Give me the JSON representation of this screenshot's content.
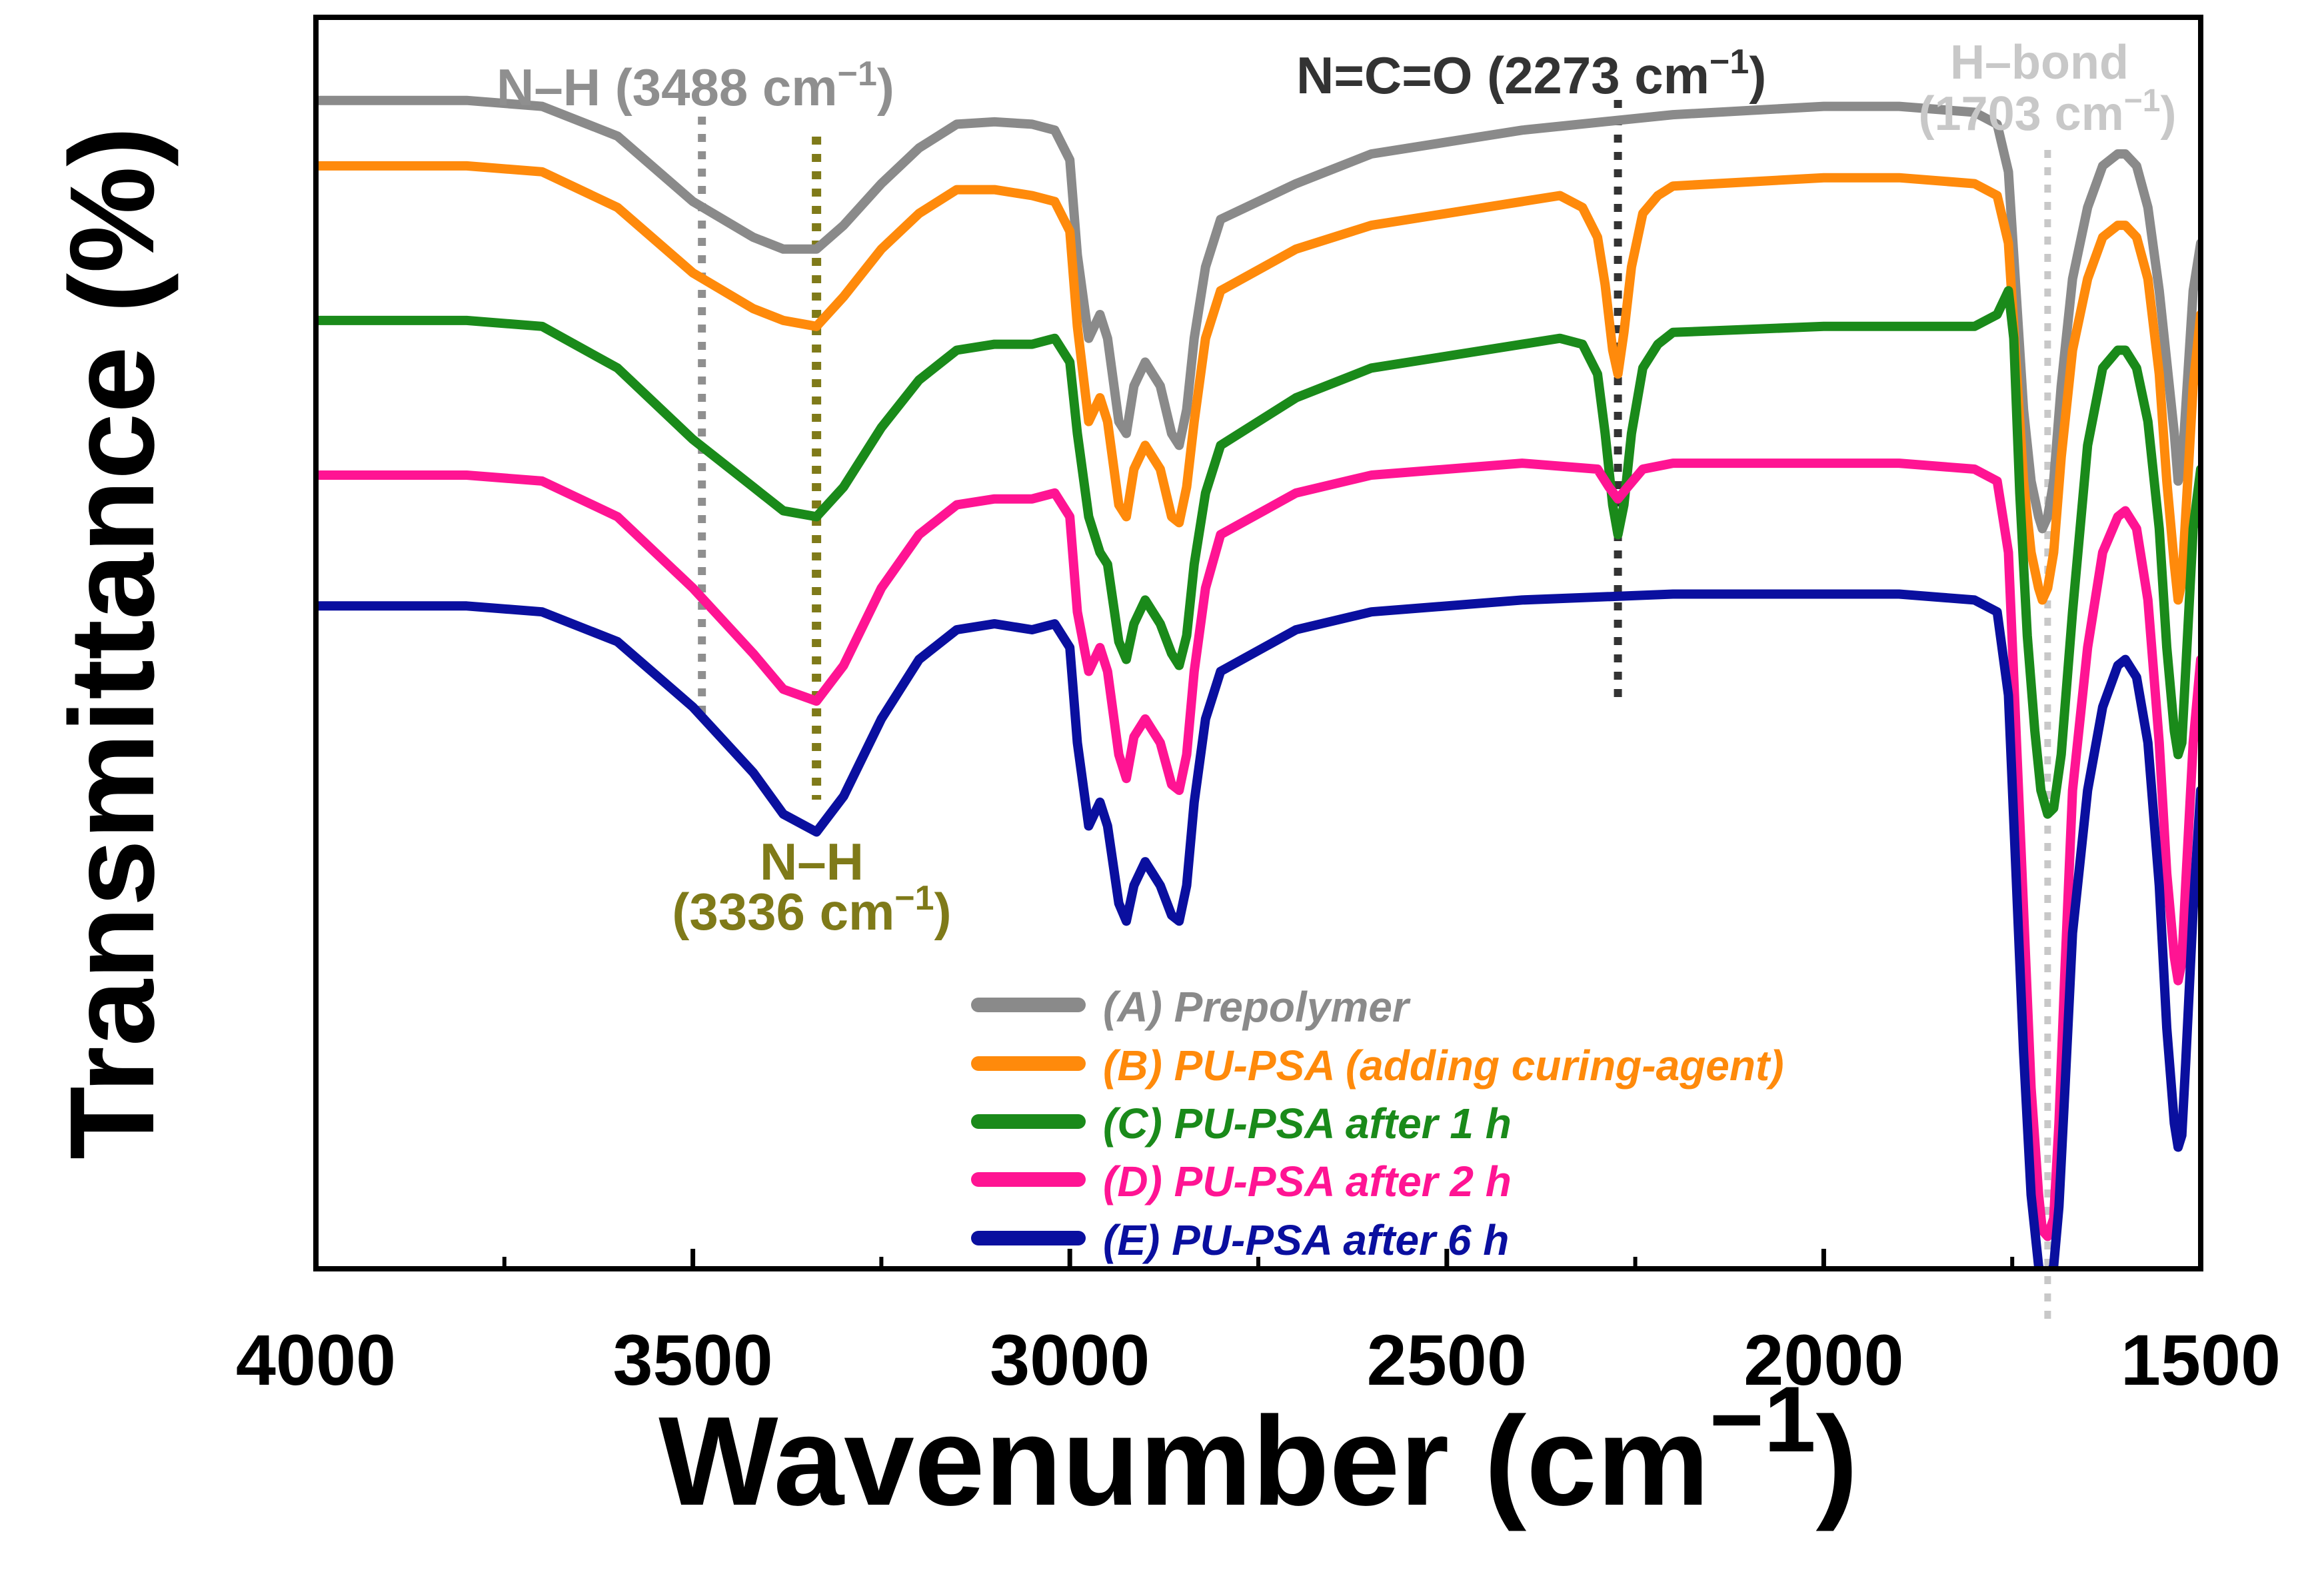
{
  "chart_data": {
    "type": "line",
    "xlabel": "Wavenumber (cm",
    "xlabel_sup": "−1",
    "xlabel_close": ")",
    "ylabel": "Transmittance (%)",
    "xlim": [
      4000,
      1500
    ],
    "x_reversed": true,
    "y_ticks_shown": false,
    "grid": false,
    "legend_position": "bottom-center",
    "x_ticks": [
      4000,
      3500,
      3000,
      2500,
      2000,
      1500
    ],
    "x_tick_labels": [
      "4000",
      "3500",
      "3000",
      "2500",
      "2000",
      "1500"
    ],
    "annotations": [
      {
        "id": "nh-3488",
        "label": "N–H (3488 cm",
        "sup": "−1",
        "close": ")",
        "x": 3488,
        "color": "#8f8f8f"
      },
      {
        "id": "nh-3336",
        "label": "N–H",
        "label2": "(3336 cm",
        "sup": "−1",
        "close": ")",
        "x": 3336,
        "color": "#7f7a19"
      },
      {
        "id": "nco-2273",
        "label": "N=C=O (2273 cm",
        "sup": "−1",
        "close": ")",
        "x": 2273,
        "color": "#333333"
      },
      {
        "id": "hbond-1703",
        "label": "H–bond",
        "label2": "(1703 cm",
        "sup": "−1",
        "close": ")",
        "x": 1703,
        "color": "#c8c8c8"
      }
    ],
    "series": [
      {
        "name": "(A) Prepolymer",
        "color": "#8a8a8a",
        "x": [
          4000,
          3800,
          3700,
          3600,
          3500,
          3420,
          3380,
          3336,
          3300,
          3250,
          3200,
          3150,
          3100,
          3050,
          3020,
          3000,
          2990,
          2975,
          2960,
          2950,
          2935,
          2925,
          2915,
          2900,
          2890,
          2880,
          2865,
          2855,
          2845,
          2835,
          2820,
          2800,
          2700,
          2600,
          2400,
          2200,
          2000,
          1900,
          1800,
          1770,
          1755,
          1745,
          1735,
          1725,
          1715,
          1710,
          1703,
          1695,
          1685,
          1670,
          1650,
          1630,
          1610,
          1600,
          1585,
          1570,
          1555,
          1545,
          1535,
          1530,
          1525,
          1520,
          1510,
          1500
        ],
        "y": [
          98,
          98,
          97.5,
          95,
          89.5,
          86.5,
          85.5,
          85.5,
          87.5,
          91,
          94,
          96,
          96.2,
          96,
          95.5,
          93,
          85,
          78,
          80,
          78,
          71,
          70,
          74,
          76,
          75,
          74,
          70,
          69,
          72,
          78,
          84,
          88,
          91,
          93.5,
          95.5,
          96.8,
          97.5,
          97.5,
          97,
          96,
          92,
          82,
          72,
          66,
          63,
          62,
          63,
          66,
          74,
          83,
          89,
          92.5,
          93.5,
          93.5,
          92.5,
          89,
          82,
          76,
          70,
          66,
          67,
          72,
          82,
          86
        ]
      },
      {
        "name": "(B) PU-PSA (adding curing-agent)",
        "color": "#ff8a0b",
        "x": [
          4000,
          3800,
          3700,
          3600,
          3500,
          3420,
          3380,
          3336,
          3300,
          3250,
          3200,
          3150,
          3100,
          3050,
          3020,
          3000,
          2990,
          2975,
          2960,
          2950,
          2935,
          2925,
          2915,
          2900,
          2890,
          2880,
          2865,
          2855,
          2845,
          2835,
          2820,
          2800,
          2700,
          2600,
          2400,
          2350,
          2320,
          2300,
          2290,
          2280,
          2273,
          2265,
          2255,
          2240,
          2220,
          2200,
          2000,
          1900,
          1800,
          1770,
          1755,
          1745,
          1735,
          1725,
          1715,
          1710,
          1703,
          1695,
          1685,
          1670,
          1650,
          1630,
          1610,
          1600,
          1585,
          1570,
          1555,
          1545,
          1535,
          1530,
          1525,
          1520,
          1510,
          1500
        ],
        "y": [
          92.5,
          92.5,
          92,
          89,
          83.5,
          80.5,
          79.5,
          79,
          81.5,
          85.5,
          88.5,
          90.5,
          90.5,
          90,
          89.5,
          87,
          79,
          71,
          73,
          71,
          64,
          63,
          67,
          69,
          68,
          67,
          63,
          62.5,
          65.5,
          71,
          78,
          82,
          85.5,
          87.5,
          89.5,
          90,
          89,
          86.5,
          82.5,
          77,
          75,
          78.5,
          84,
          88.5,
          90,
          90.8,
          91.5,
          91.5,
          91,
          90,
          86,
          76,
          66,
          60,
          57,
          56,
          57,
          60,
          68,
          77,
          83,
          86.5,
          87.5,
          87.5,
          86.5,
          83,
          75,
          66,
          59,
          56,
          57.5,
          63,
          74,
          80
        ]
      },
      {
        "name": "(C) PU-PSA after 1 h",
        "color": "#1a8a1a",
        "x": [
          4000,
          3800,
          3700,
          3600,
          3500,
          3420,
          3380,
          3336,
          3300,
          3250,
          3200,
          3150,
          3100,
          3050,
          3020,
          3000,
          2990,
          2975,
          2960,
          2950,
          2935,
          2925,
          2915,
          2900,
          2890,
          2880,
          2865,
          2855,
          2845,
          2835,
          2820,
          2800,
          2700,
          2600,
          2400,
          2350,
          2320,
          2300,
          2290,
          2280,
          2273,
          2265,
          2255,
          2240,
          2220,
          2200,
          2000,
          1900,
          1800,
          1770,
          1755,
          1748,
          1740,
          1730,
          1720,
          1712,
          1703,
          1695,
          1685,
          1670,
          1650,
          1630,
          1610,
          1600,
          1585,
          1570,
          1555,
          1545,
          1535,
          1530,
          1525,
          1520,
          1510,
          1500
        ],
        "y": [
          79.5,
          79.5,
          79,
          75.5,
          69.5,
          65.5,
          63.5,
          63,
          65.5,
          70.5,
          74.5,
          77,
          77.5,
          77.5,
          78,
          76,
          70,
          63,
          60,
          59,
          52.5,
          51,
          54,
          56,
          55,
          54,
          51.5,
          50.5,
          53,
          59,
          65,
          69,
          73,
          75.5,
          77.5,
          78,
          77.5,
          75,
          70,
          64,
          61.5,
          64,
          70,
          75.5,
          77.5,
          78.5,
          79,
          79,
          79,
          80,
          82,
          78,
          65,
          53,
          45,
          40,
          38,
          38.5,
          43,
          55,
          69,
          75.5,
          77,
          77,
          75.5,
          71,
          62,
          52,
          45,
          43,
          44,
          50,
          62,
          67
        ]
      },
      {
        "name": "(D) PU-PSA after 2 h",
        "color": "#ff1493",
        "x": [
          4000,
          3800,
          3700,
          3600,
          3500,
          3420,
          3380,
          3336,
          3300,
          3250,
          3200,
          3150,
          3100,
          3050,
          3020,
          3000,
          2990,
          2975,
          2960,
          2950,
          2935,
          2925,
          2915,
          2900,
          2890,
          2880,
          2865,
          2855,
          2845,
          2835,
          2820,
          2800,
          2700,
          2600,
          2400,
          2300,
          2285,
          2273,
          2260,
          2240,
          2200,
          2000,
          1900,
          1800,
          1770,
          1755,
          1745,
          1735,
          1725,
          1715,
          1710,
          1703,
          1695,
          1688,
          1680,
          1670,
          1650,
          1630,
          1610,
          1600,
          1585,
          1570,
          1555,
          1545,
          1535,
          1530,
          1525,
          1520,
          1510,
          1500
        ],
        "y": [
          66.5,
          66.5,
          66,
          63,
          57,
          51.5,
          48.5,
          47.5,
          50.5,
          57,
          61.5,
          64,
          64.5,
          64.5,
          65,
          63,
          55,
          50,
          52,
          50,
          43,
          41,
          44.5,
          46,
          45,
          44,
          40.5,
          40,
          43,
          50,
          57,
          61.5,
          65,
          66.5,
          67.5,
          67,
          65.5,
          64.5,
          65.5,
          67,
          67.5,
          67.5,
          67.5,
          67,
          66,
          60,
          45,
          30,
          15,
          6,
          3,
          2.5,
          4,
          12,
          25,
          40,
          52,
          60,
          63,
          63.5,
          62,
          56,
          44,
          33,
          26,
          24,
          25.5,
          32,
          44,
          51
        ]
      },
      {
        "name": "(E) PU-PSA after 6 h",
        "color": "#0a0f9f",
        "x": [
          4000,
          3800,
          3700,
          3600,
          3500,
          3420,
          3380,
          3336,
          3300,
          3250,
          3200,
          3150,
          3100,
          3050,
          3020,
          3000,
          2990,
          2975,
          2960,
          2950,
          2935,
          2925,
          2915,
          2900,
          2890,
          2880,
          2865,
          2855,
          2845,
          2835,
          2820,
          2800,
          2700,
          2600,
          2400,
          2200,
          2000,
          1900,
          1800,
          1770,
          1755,
          1745,
          1735,
          1725,
          1715,
          1710,
          1703,
          1695,
          1688,
          1680,
          1670,
          1650,
          1630,
          1610,
          1600,
          1585,
          1570,
          1555,
          1545,
          1535,
          1530,
          1525,
          1520,
          1510,
          1500
        ],
        "y": [
          55.5,
          55.5,
          55,
          52.5,
          47,
          41.5,
          38,
          36.5,
          39.5,
          46,
          51,
          53.5,
          54,
          53.5,
          54,
          52,
          44,
          37,
          39,
          37,
          30.5,
          29,
          32,
          34,
          33,
          32,
          29.5,
          29,
          32,
          39,
          46,
          50,
          53.5,
          55,
          56,
          56.5,
          56.5,
          56.5,
          56,
          55,
          48,
          33,
          18,
          6,
          0,
          -1,
          -1,
          0,
          5,
          15,
          28,
          40,
          47,
          50.5,
          51,
          49.5,
          44,
          32,
          20,
          12,
          10,
          11,
          17,
          30,
          40
        ]
      }
    ]
  }
}
